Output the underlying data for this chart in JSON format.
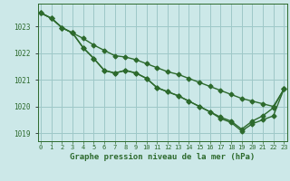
{
  "xlabel": "Graphe pression niveau de la mer (hPa)",
  "hours": [
    0,
    1,
    2,
    3,
    4,
    5,
    6,
    7,
    8,
    9,
    10,
    11,
    12,
    13,
    14,
    15,
    16,
    17,
    18,
    19,
    20,
    21,
    22,
    23
  ],
  "line1": [
    1023.5,
    1023.3,
    1022.95,
    1022.75,
    1022.55,
    1022.3,
    1022.1,
    1021.9,
    1021.85,
    1021.75,
    1021.6,
    1021.45,
    1021.3,
    1021.2,
    1021.05,
    1020.9,
    1020.75,
    1020.6,
    1020.45,
    1020.3,
    1020.2,
    1020.1,
    1020.0,
    1020.65
  ],
  "line2": [
    1023.5,
    1023.3,
    1022.95,
    1022.75,
    1022.2,
    1021.8,
    1021.35,
    1021.25,
    1021.35,
    1021.25,
    1021.05,
    1020.7,
    1020.55,
    1020.4,
    1020.2,
    1020.0,
    1019.8,
    1019.6,
    1019.45,
    1019.15,
    1019.45,
    1019.65,
    1019.95,
    1020.65
  ],
  "line3": [
    1023.5,
    1023.3,
    1022.95,
    1022.75,
    1022.2,
    1021.8,
    1021.35,
    1021.25,
    1021.35,
    1021.25,
    1021.05,
    1020.7,
    1020.55,
    1020.4,
    1020.2,
    1020.0,
    1019.8,
    1019.55,
    1019.4,
    1019.08,
    1019.35,
    1019.5,
    1019.65,
    1020.65
  ],
  "ylim": [
    1018.7,
    1023.85
  ],
  "yticks": [
    1019,
    1020,
    1021,
    1022,
    1023
  ],
  "line_color": "#2d6a2d",
  "bg_color": "#cce8e8",
  "grid_color": "#9ec8c8",
  "marker": "D",
  "markersize": 2.5,
  "linewidth": 1.0
}
